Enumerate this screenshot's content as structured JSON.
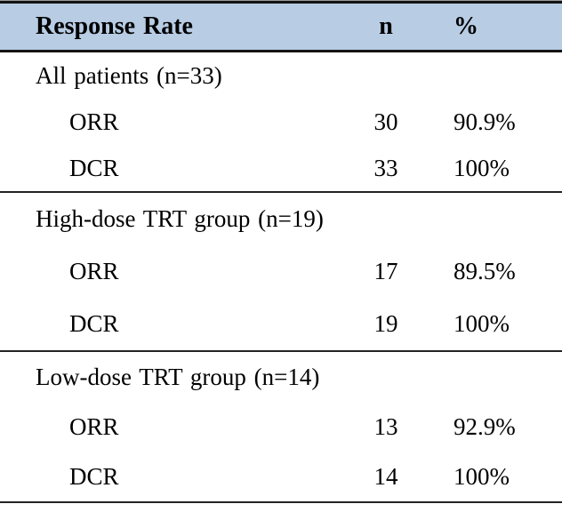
{
  "table": {
    "header": {
      "label": "Response Rate",
      "n": "n",
      "pct": "%"
    },
    "sections": [
      {
        "title": "All patients (n=33)",
        "rows": [
          {
            "label": "ORR",
            "n": "30",
            "pct": "90.9%"
          },
          {
            "label": "DCR",
            "n": "33",
            "pct": "100%"
          }
        ]
      },
      {
        "title": "High-dose TRT group (n=19)",
        "rows": [
          {
            "label": "ORR",
            "n": "17",
            "pct": "89.5%"
          },
          {
            "label": "DCR",
            "n": "19",
            "pct": "100%"
          }
        ]
      },
      {
        "title": "Low-dose TRT group (n=14)",
        "rows": [
          {
            "label": "ORR",
            "n": "13",
            "pct": "92.9%"
          },
          {
            "label": "DCR",
            "n": "14",
            "pct": "100%"
          }
        ]
      }
    ]
  },
  "colors": {
    "header_bg": "#B8CCE4",
    "rule_color": "#131313",
    "text_color": "#000000"
  }
}
